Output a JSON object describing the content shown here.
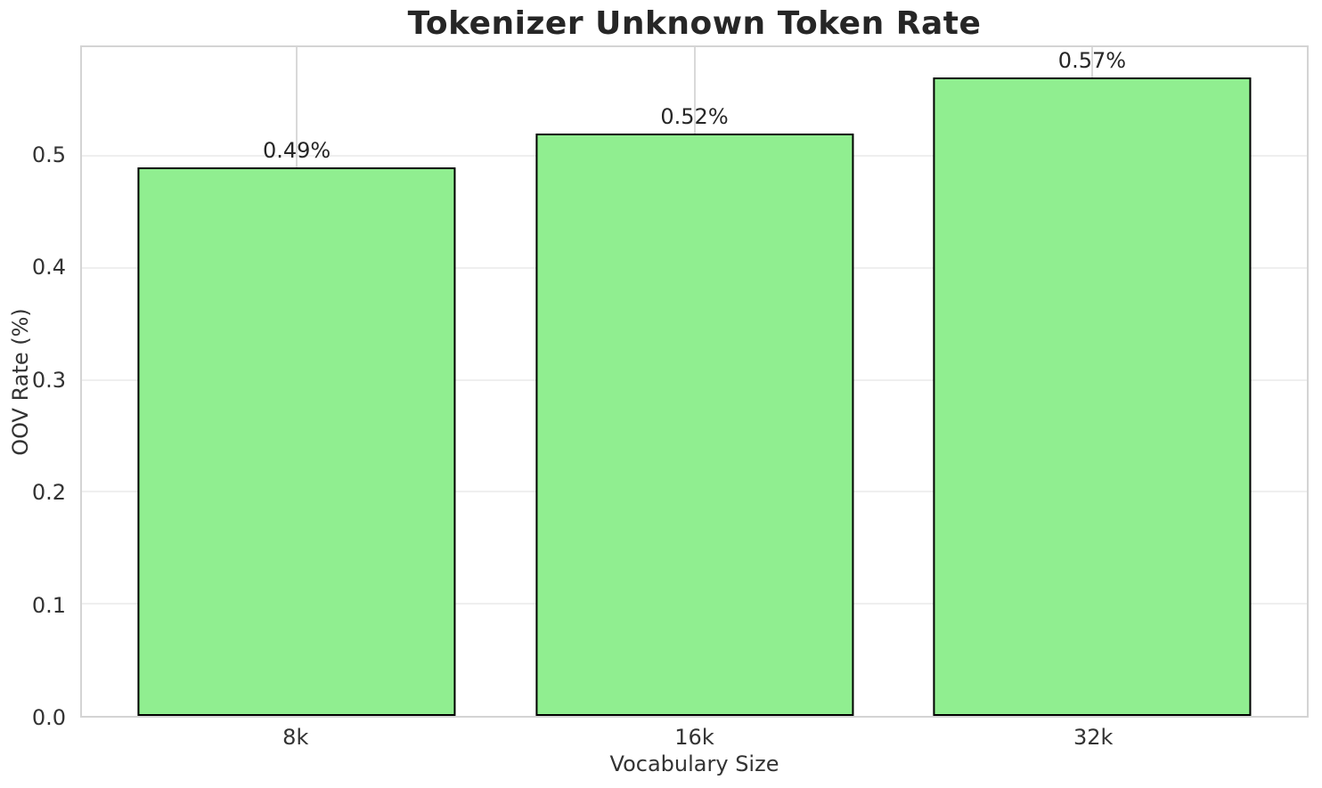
{
  "page": {
    "title": "Tokenizer Unknown Token Rate"
  },
  "chart_data": {
    "type": "bar",
    "title": "Tokenizer Unknown Token Rate",
    "xlabel": "Vocabulary Size",
    "ylabel": "OOV Rate (%)",
    "categories": [
      "8k",
      "16k",
      "32k"
    ],
    "values": [
      0.49,
      0.52,
      0.57
    ],
    "value_labels": [
      "0.49%",
      "0.52%",
      "0.57%"
    ],
    "ylim": [
      0,
      0.597
    ],
    "yticks": [
      0,
      0.1,
      0.2,
      0.3,
      0.4,
      0.5
    ],
    "ytick_labels": [
      "0.0",
      "0.1",
      "0.2",
      "0.3",
      "0.4",
      "0.5"
    ],
    "bar_width_fraction": 0.8,
    "x_edge_margin": 0.14,
    "grid": "both",
    "legend_position": "none",
    "colors": {
      "background": "#ffffff",
      "bar_fill": "#90ee90",
      "bar_edge": "#000000",
      "grid_horizontal": "#efefef",
      "grid_vertical": "#d9d9d9",
      "spine": "#d4d4d4",
      "title_text": "#262626",
      "tick_text": "#333333"
    }
  }
}
